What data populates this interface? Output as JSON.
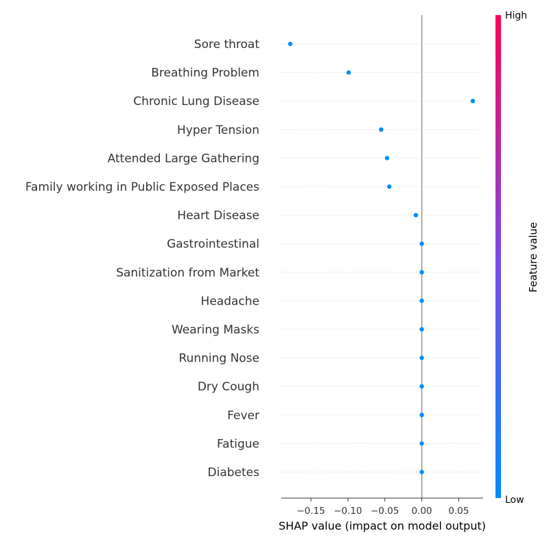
{
  "chart_data": {
    "type": "scatter",
    "xlabel": "SHAP value (impact on model output)",
    "xlim": [
      -0.19,
      0.083
    ],
    "xticks": [
      -0.15,
      -0.1,
      -0.05,
      0.0,
      0.05
    ],
    "xtick_labels": [
      "−0.15",
      "−0.10",
      "−0.05",
      "0.00",
      "0.05"
    ],
    "grid": false,
    "row_guides": "dotted",
    "zero_line": true,
    "features": [
      {
        "name": "Sore throat",
        "shap": -0.178
      },
      {
        "name": "Breathing Problem",
        "shap": -0.099
      },
      {
        "name": "Chronic Lung Disease",
        "shap": 0.069
      },
      {
        "name": "Hyper Tension",
        "shap": -0.055
      },
      {
        "name": "Attended Large Gathering",
        "shap": -0.047
      },
      {
        "name": "Family working in Public Exposed Places",
        "shap": -0.044
      },
      {
        "name": "Heart Disease",
        "shap": -0.008
      },
      {
        "name": "Gastrointestinal ",
        "shap": 0.0
      },
      {
        "name": "Sanitization from Market",
        "shap": 0.0
      },
      {
        "name": "Headache",
        "shap": 0.0
      },
      {
        "name": "Wearing Masks",
        "shap": 0.0
      },
      {
        "name": "Running Nose",
        "shap": 0.0
      },
      {
        "name": "Dry Cough",
        "shap": 0.0
      },
      {
        "name": "Fever",
        "shap": 0.0
      },
      {
        "name": "Fatigue ",
        "shap": 0.0
      },
      {
        "name": "Diabetes",
        "shap": 0.0
      }
    ],
    "point_color": "#008bfb",
    "colorbar": {
      "title": "Feature value",
      "high_label": "High",
      "low_label": "Low",
      "high_color": "#ff0052",
      "mid_color": "#7c4be6",
      "low_color": "#008bfb"
    }
  }
}
